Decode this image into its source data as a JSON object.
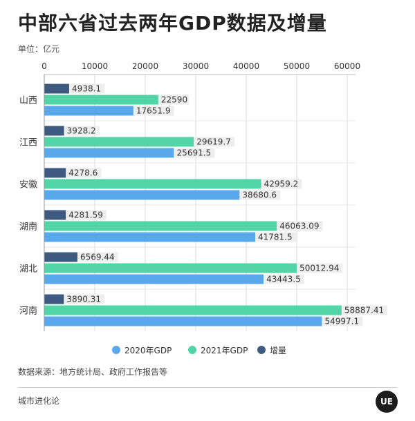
{
  "header": {
    "title": "中部六省过去两年GDP数据及增量",
    "unit": "单位：亿元"
  },
  "footer": {
    "source": "数据来源：地方统计局、政府工作报告等",
    "brand": "城市进化论",
    "logo_text": "UE"
  },
  "colors": {
    "gdp2020": "#5aa8ec",
    "gdp2021": "#51d4a6",
    "increment": "#3e5a80",
    "label_bg": "#eeeeee",
    "grid": "#d9d9d9"
  },
  "chart_data": {
    "type": "bar",
    "orientation": "horizontal",
    "categories": [
      "山西",
      "江西",
      "安徽",
      "湖南",
      "湖北",
      "河南"
    ],
    "series": [
      {
        "name": "增量",
        "values": [
          4938.1,
          3928.2,
          4278.6,
          4281.59,
          6569.44,
          3890.31
        ],
        "labels": [
          "4938.1",
          "3928.2",
          "4278.6",
          "4281.59",
          "6569.44",
          "3890.31"
        ]
      },
      {
        "name": "2021年GDP",
        "values": [
          22590,
          29619.7,
          42959.2,
          46063.09,
          50012.94,
          58887.41
        ],
        "labels": [
          "22590",
          "29619.7",
          "42959.2",
          "46063.09",
          "50012.94",
          "58887.41"
        ]
      },
      {
        "name": "2020年GDP",
        "values": [
          17651.9,
          25691.5,
          38680.6,
          41781.5,
          43443.5,
          54997.1
        ],
        "labels": [
          "17651.9",
          "25691.5",
          "38680.6",
          "41781.5",
          "43443.5",
          "54997.1"
        ]
      }
    ],
    "xlim": [
      0,
      60000
    ],
    "ticks": [
      0,
      10000,
      20000,
      30000,
      40000,
      50000,
      60000
    ],
    "tick_labels": [
      "0",
      "10000",
      "20000",
      "30000",
      "40000",
      "50000",
      "60000"
    ],
    "legend": [
      "2020年GDP",
      "2021年GDP",
      "增量"
    ],
    "legend_position": "bottom",
    "grid": true
  }
}
